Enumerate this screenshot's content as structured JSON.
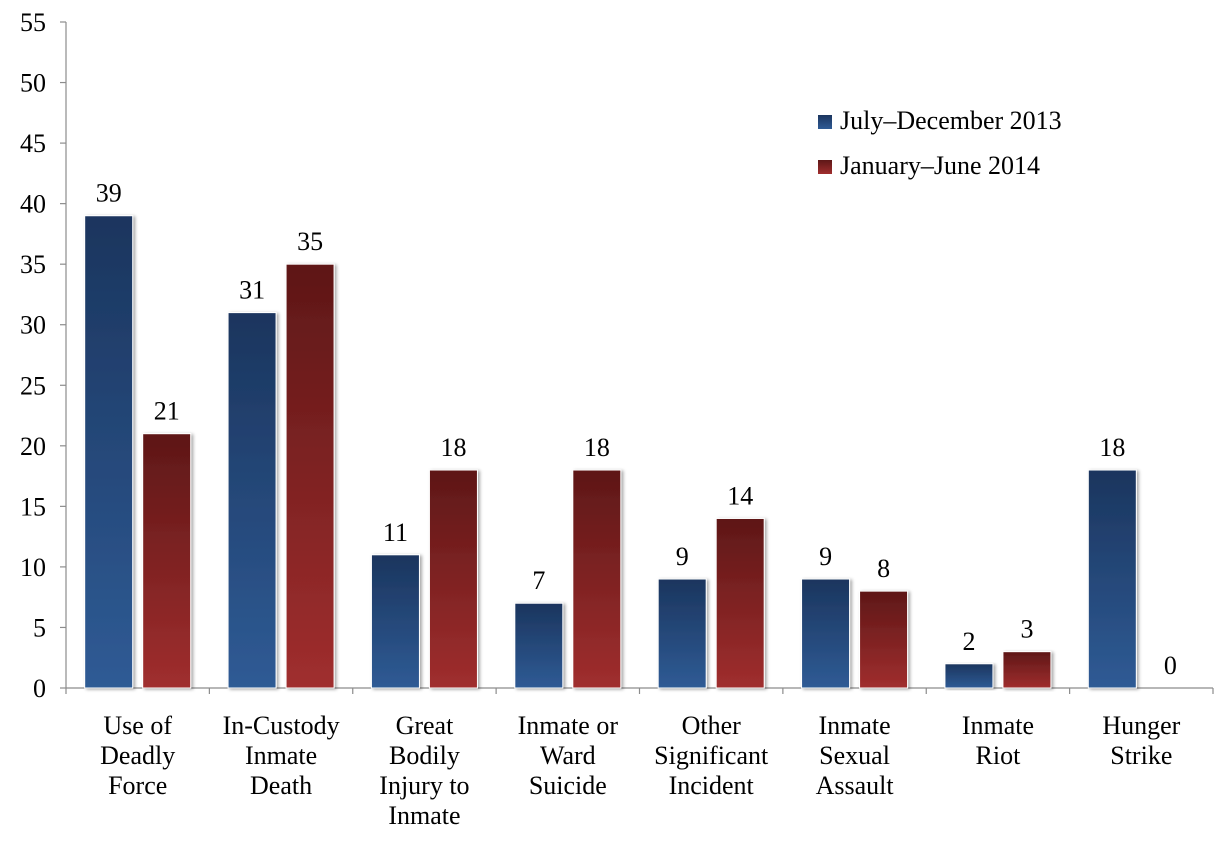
{
  "chart_data": {
    "type": "bar",
    "title": "",
    "xlabel": "",
    "ylabel": "",
    "ylim": [
      0,
      55
    ],
    "yticks": [
      0,
      5,
      10,
      15,
      20,
      25,
      30,
      35,
      40,
      45,
      50,
      55
    ],
    "grid": false,
    "legend_position": "top-right",
    "categories": [
      [
        "Use of",
        "Deadly",
        "Force"
      ],
      [
        "In-Custody",
        "Inmate",
        "Death"
      ],
      [
        "Great",
        "Bodily",
        "Injury to",
        "Inmate"
      ],
      [
        "Inmate or",
        "Ward",
        "Suicide"
      ],
      [
        "Other",
        "Significant",
        "Incident"
      ],
      [
        "Inmate",
        "Sexual",
        "Assault"
      ],
      [
        "Inmate",
        "Riot"
      ],
      [
        "Hunger",
        "Strike"
      ]
    ],
    "series": [
      {
        "name": "July–December 2013",
        "color": "#2b5288",
        "values": [
          39,
          31,
          11,
          7,
          9,
          9,
          2,
          18
        ]
      },
      {
        "name": "January–June 2014",
        "color": "#962a2a",
        "values": [
          21,
          35,
          18,
          18,
          14,
          8,
          3,
          0
        ]
      }
    ]
  }
}
